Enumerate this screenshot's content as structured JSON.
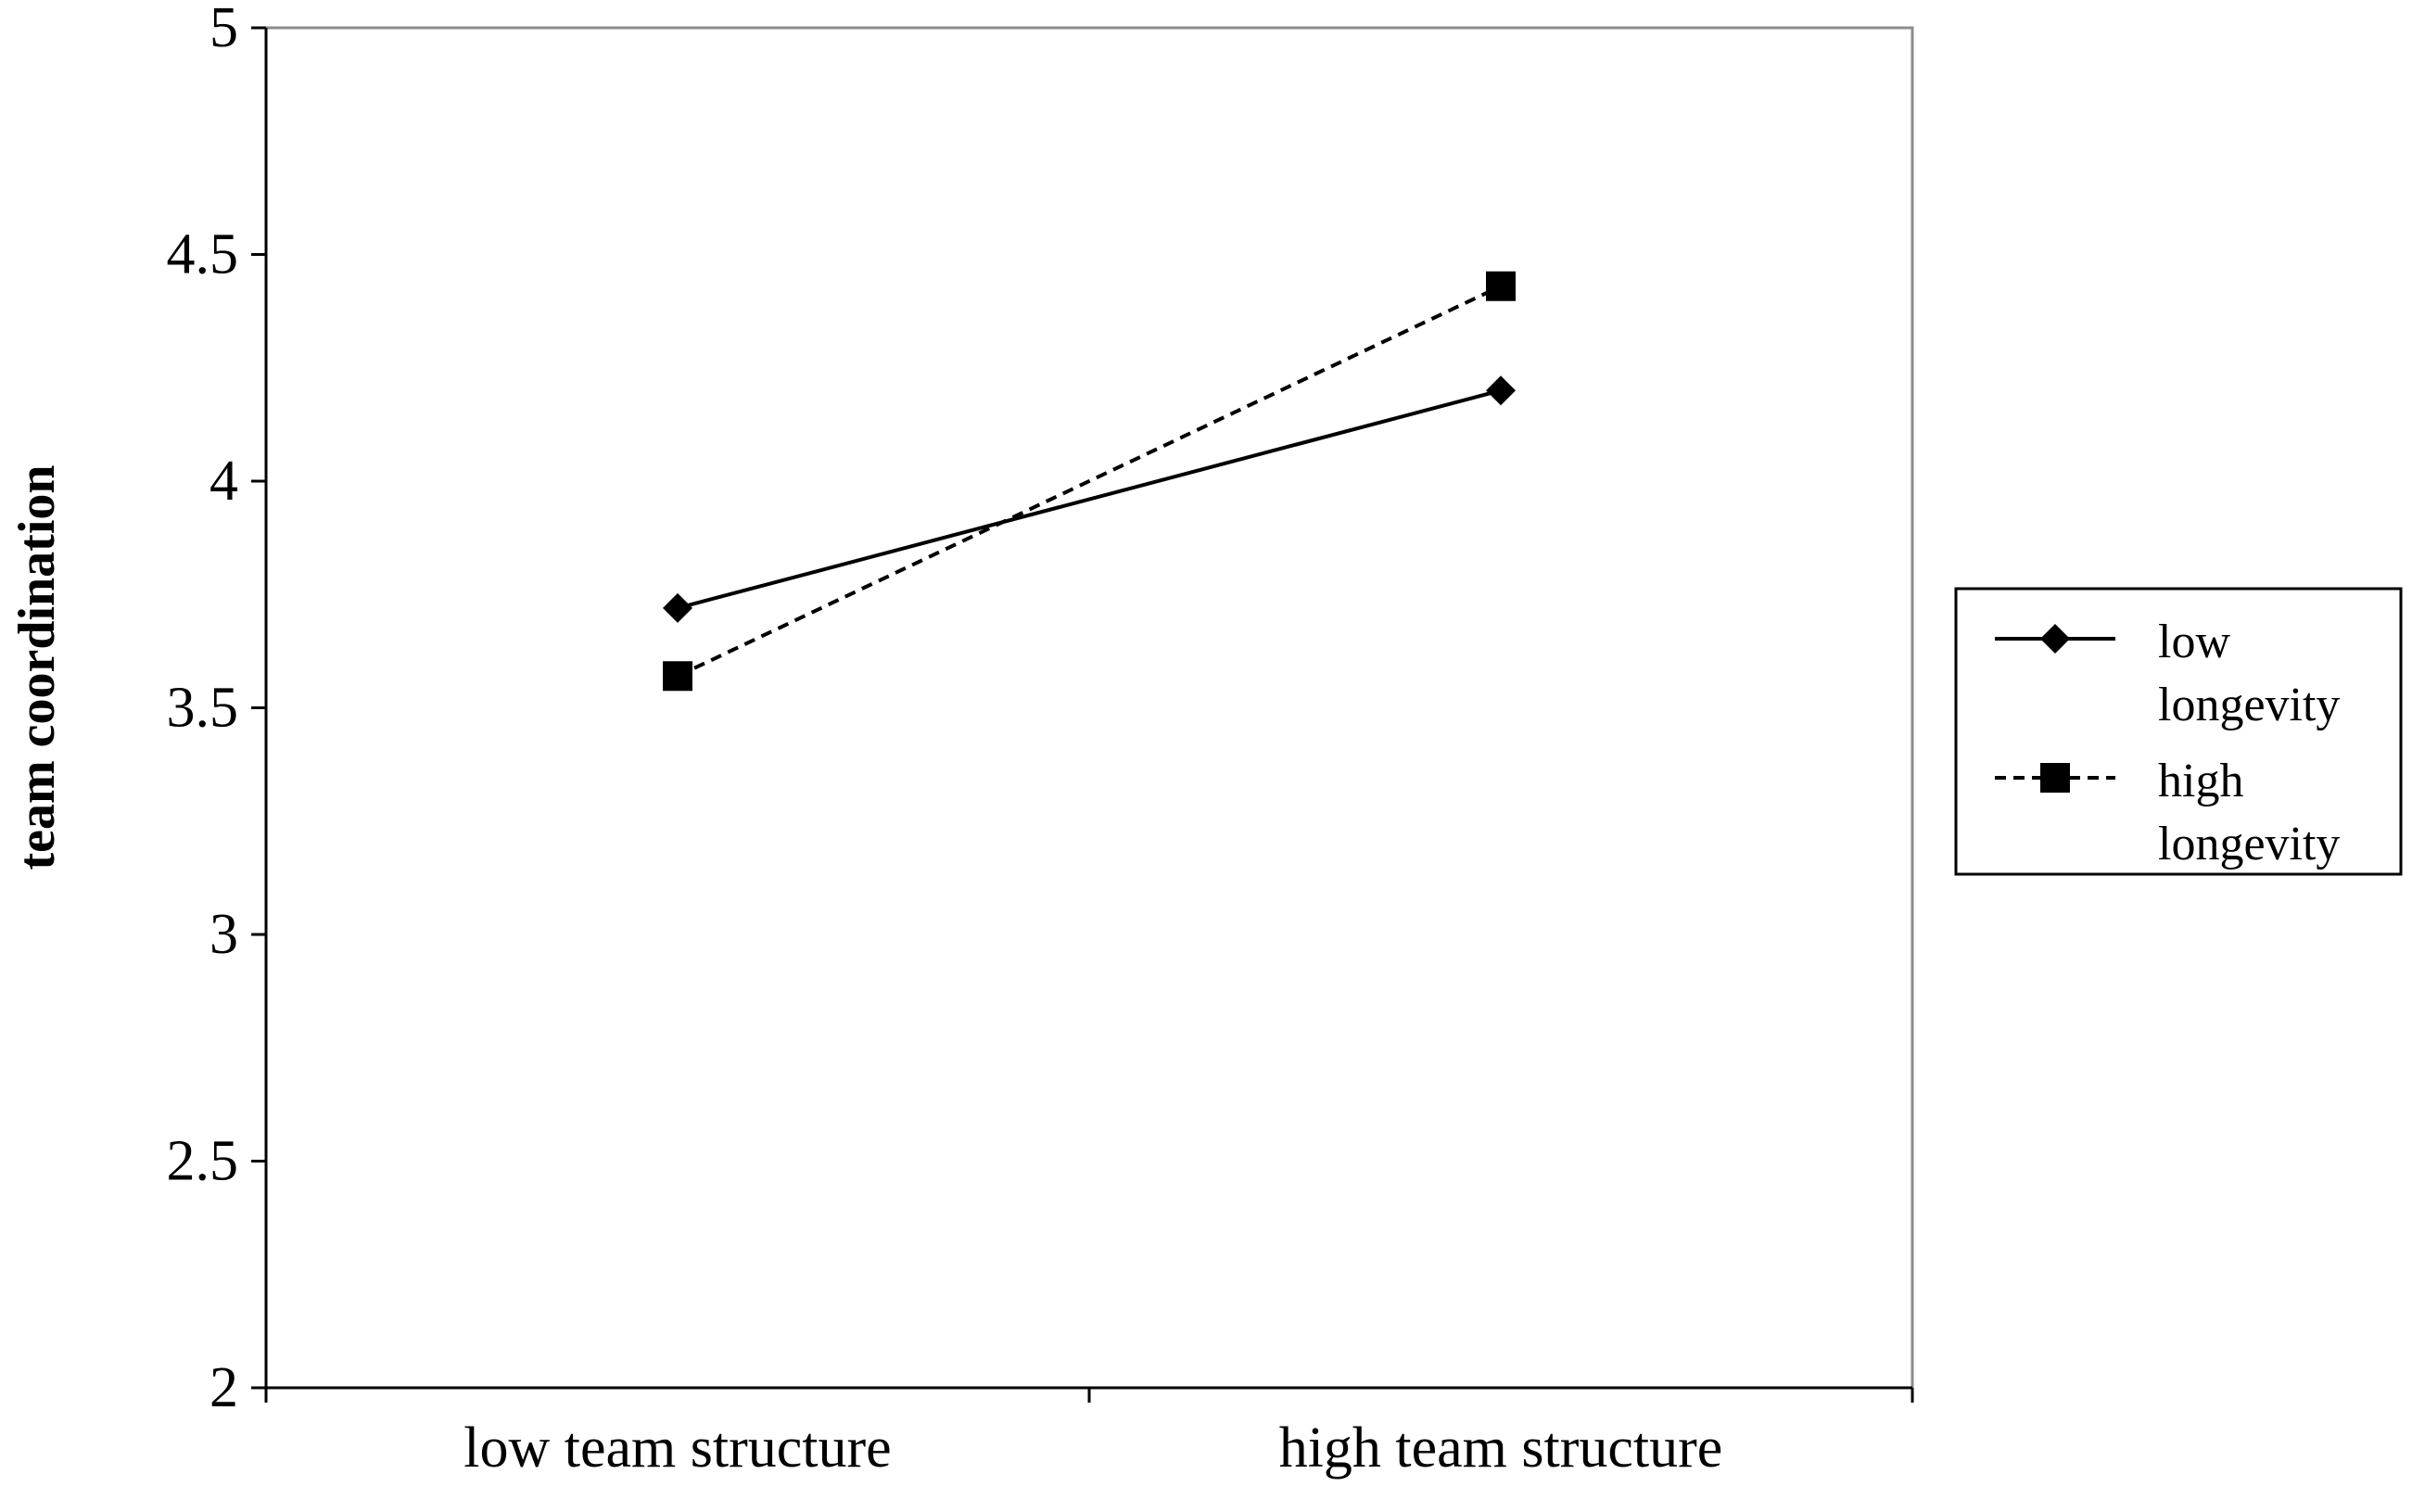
{
  "chart_data": {
    "type": "line",
    "title": "",
    "xlabel": "",
    "ylabel": "team coordination",
    "ylim": [
      2,
      5
    ],
    "yticks": [
      "2",
      "2.5",
      "3",
      "3.5",
      "4",
      "4.5",
      "5"
    ],
    "categories": [
      "low team structure",
      "high team structure"
    ],
    "grid": false,
    "legend_position": "right",
    "series": [
      {
        "name_lines": [
          "low",
          "longevity"
        ],
        "values": [
          3.72,
          4.2
        ],
        "marker": "diamond",
        "line_style": "solid",
        "color": "#000000"
      },
      {
        "name_lines": [
          "high",
          "longevity"
        ],
        "values": [
          3.57,
          4.43
        ],
        "marker": "square",
        "line_style": "dashed",
        "color": "#000000"
      }
    ]
  }
}
